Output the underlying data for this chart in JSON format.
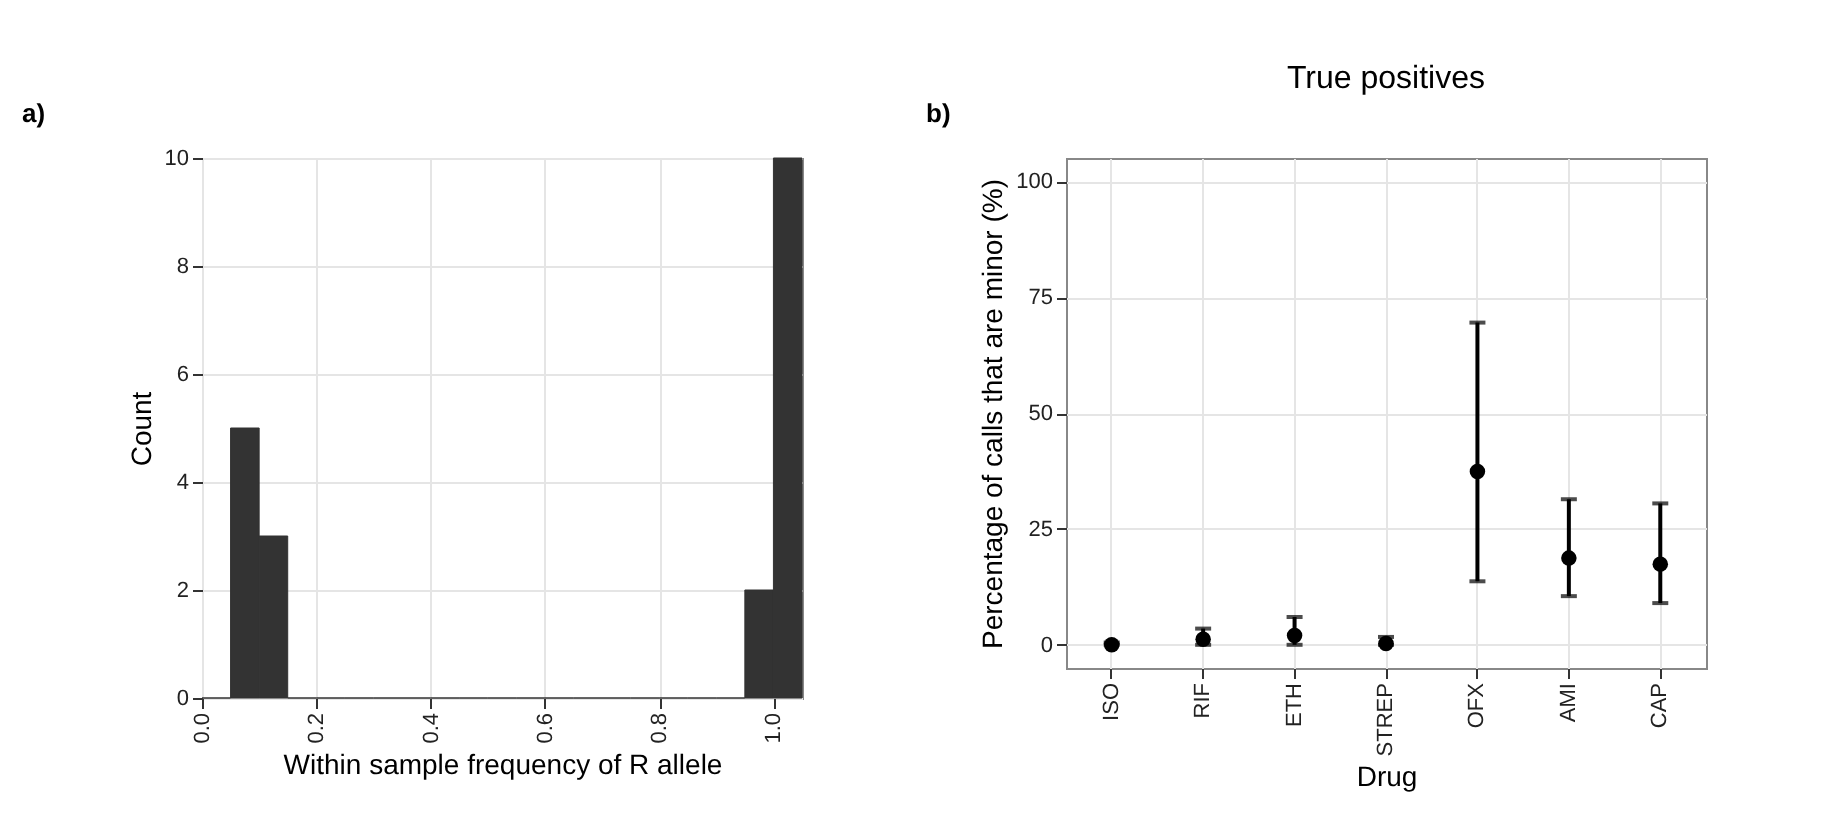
{
  "chart_data": [
    {
      "type": "histogram",
      "xlabel": "Within sample frequency of R allele",
      "ylabel": "Count",
      "annotations": [
        "a)"
      ],
      "bins": [
        0.0,
        0.05,
        0.1,
        0.15,
        0.2,
        0.25,
        0.3,
        0.35,
        0.4,
        0.45,
        0.5,
        0.55,
        0.6,
        0.65,
        0.7,
        0.75,
        0.8,
        0.85,
        0.9,
        0.95,
        1.0,
        1.05
      ],
      "values": [
        0,
        5,
        3,
        0,
        0,
        0,
        0,
        0,
        0,
        0,
        0,
        0,
        0,
        0,
        0,
        0,
        0,
        0,
        0,
        2,
        10
      ],
      "color": "#333333",
      "xlim": [
        0,
        1.05
      ],
      "xticks": [
        {
          "value": 0,
          "label": "0.0"
        },
        0.2,
        0.4,
        0.6,
        0.8,
        {
          "value": 1,
          "label": "1.0"
        }
      ],
      "ylim": [
        0,
        10
      ],
      "yticks": [
        0,
        2,
        4,
        6,
        8,
        10
      ],
      "grid": true
    },
    {
      "type": "scatter",
      "title": "True positives",
      "xlabel": "Drug",
      "ylabel": "Percentage of calls that are minor (%)",
      "annotations": [
        "b)"
      ],
      "categories": [
        "ISO",
        "RIF",
        "ETH",
        "STREP",
        "OFX",
        "AMI",
        "CAP"
      ],
      "values": [
        0,
        1.2,
        2,
        0.3,
        37.4,
        18.7,
        17.4
      ],
      "errors": [
        [
          0,
          0.5
        ],
        [
          0,
          3.5
        ],
        [
          0,
          6
        ],
        [
          0,
          1.7
        ],
        [
          13.7,
          69.5
        ],
        [
          10.5,
          31.4
        ],
        [
          9.0,
          30.5
        ]
      ],
      "color": "#000000",
      "marker": "circle",
      "ylim": [
        -5,
        105
      ],
      "yticks": [
        0,
        25,
        50,
        75,
        100
      ],
      "grid": true
    }
  ]
}
